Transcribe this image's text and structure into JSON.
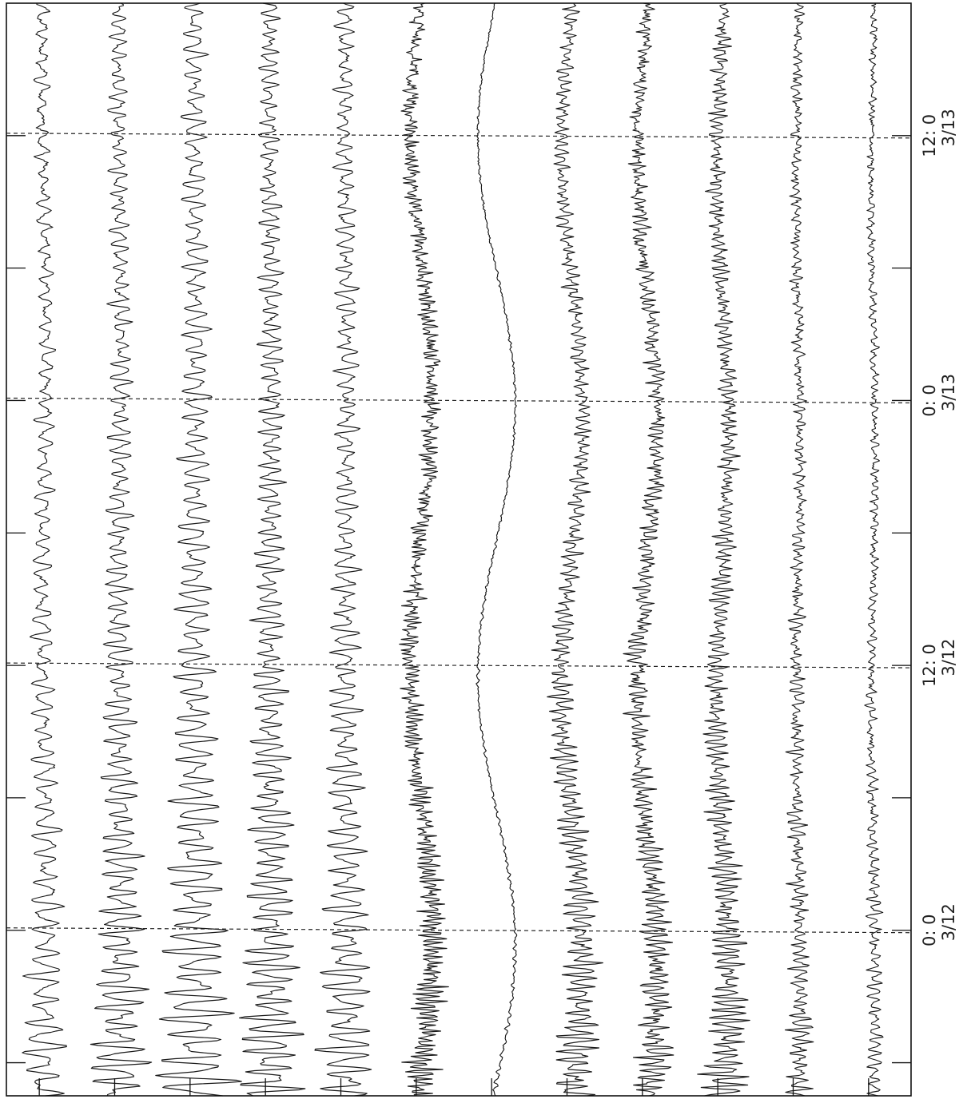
{
  "chart_data": {
    "type": "line",
    "title": "",
    "xlabel": "",
    "ylabel": "",
    "x_axis": {
      "orientation": "rotated-90-clockwise",
      "unit": "hours from 3/11 0:00",
      "range_hours": [
        16.5,
        66
      ],
      "major_ticks_hours": [
        24,
        36,
        48,
        60
      ],
      "minor_ticks_hours": [
        18,
        30,
        42,
        54
      ],
      "tick_labels": [
        {
          "hours": 24,
          "time": "0: 0",
          "date": "3/12"
        },
        {
          "hours": 36,
          "time": "12: 0",
          "date": "3/12"
        },
        {
          "hours": 48,
          "time": "0: 0",
          "date": "3/13"
        },
        {
          "hours": 60,
          "time": "12: 0",
          "date": "3/13"
        }
      ]
    },
    "grid": {
      "dashed_at_major_ticks": true
    },
    "legend": "none",
    "event_onset_hours": 15.1,
    "series_count": 12,
    "series": [
      {
        "index": 1,
        "peak_amplitude": 0.55,
        "dominant_period_hours": 0.7,
        "noise": 0.05,
        "long_period_swing": 0.1
      },
      {
        "index": 2,
        "peak_amplitude": 0.75,
        "dominant_period_hours": 0.55,
        "noise": 0.05,
        "long_period_swing": 0.08
      },
      {
        "index": 3,
        "peak_amplitude": 1.0,
        "dominant_period_hours": 0.62,
        "noise": 0.04,
        "long_period_swing": 0.05
      },
      {
        "index": 4,
        "peak_amplitude": 0.85,
        "dominant_period_hours": 0.5,
        "noise": 0.05,
        "long_period_swing": 0.06
      },
      {
        "index": 5,
        "peak_amplitude": 0.75,
        "dominant_period_hours": 0.58,
        "noise": 0.06,
        "long_period_swing": 0.05
      },
      {
        "index": 6,
        "peak_amplitude": 0.4,
        "dominant_period_hours": 0.22,
        "noise": 0.14,
        "long_period_swing": 0.55
      },
      {
        "index": 7,
        "peak_amplitude": 0.05,
        "dominant_period_hours": 0.4,
        "noise": 0.02,
        "long_period_swing": 0.95
      },
      {
        "index": 8,
        "peak_amplitude": 0.55,
        "dominant_period_hours": 0.35,
        "noise": 0.08,
        "long_period_swing": 0.55
      },
      {
        "index": 9,
        "peak_amplitude": 0.42,
        "dominant_period_hours": 0.3,
        "noise": 0.14,
        "long_period_swing": 0.5
      },
      {
        "index": 10,
        "peak_amplitude": 0.55,
        "dominant_period_hours": 0.32,
        "noise": 0.1,
        "long_period_swing": 0.3
      },
      {
        "index": 11,
        "peak_amplitude": 0.3,
        "dominant_period_hours": 0.35,
        "noise": 0.08,
        "long_period_swing": 0.1
      },
      {
        "index": 12,
        "peak_amplitude": 0.2,
        "dominant_period_hours": 0.4,
        "noise": 0.06,
        "long_period_swing": 0.1
      }
    ]
  }
}
